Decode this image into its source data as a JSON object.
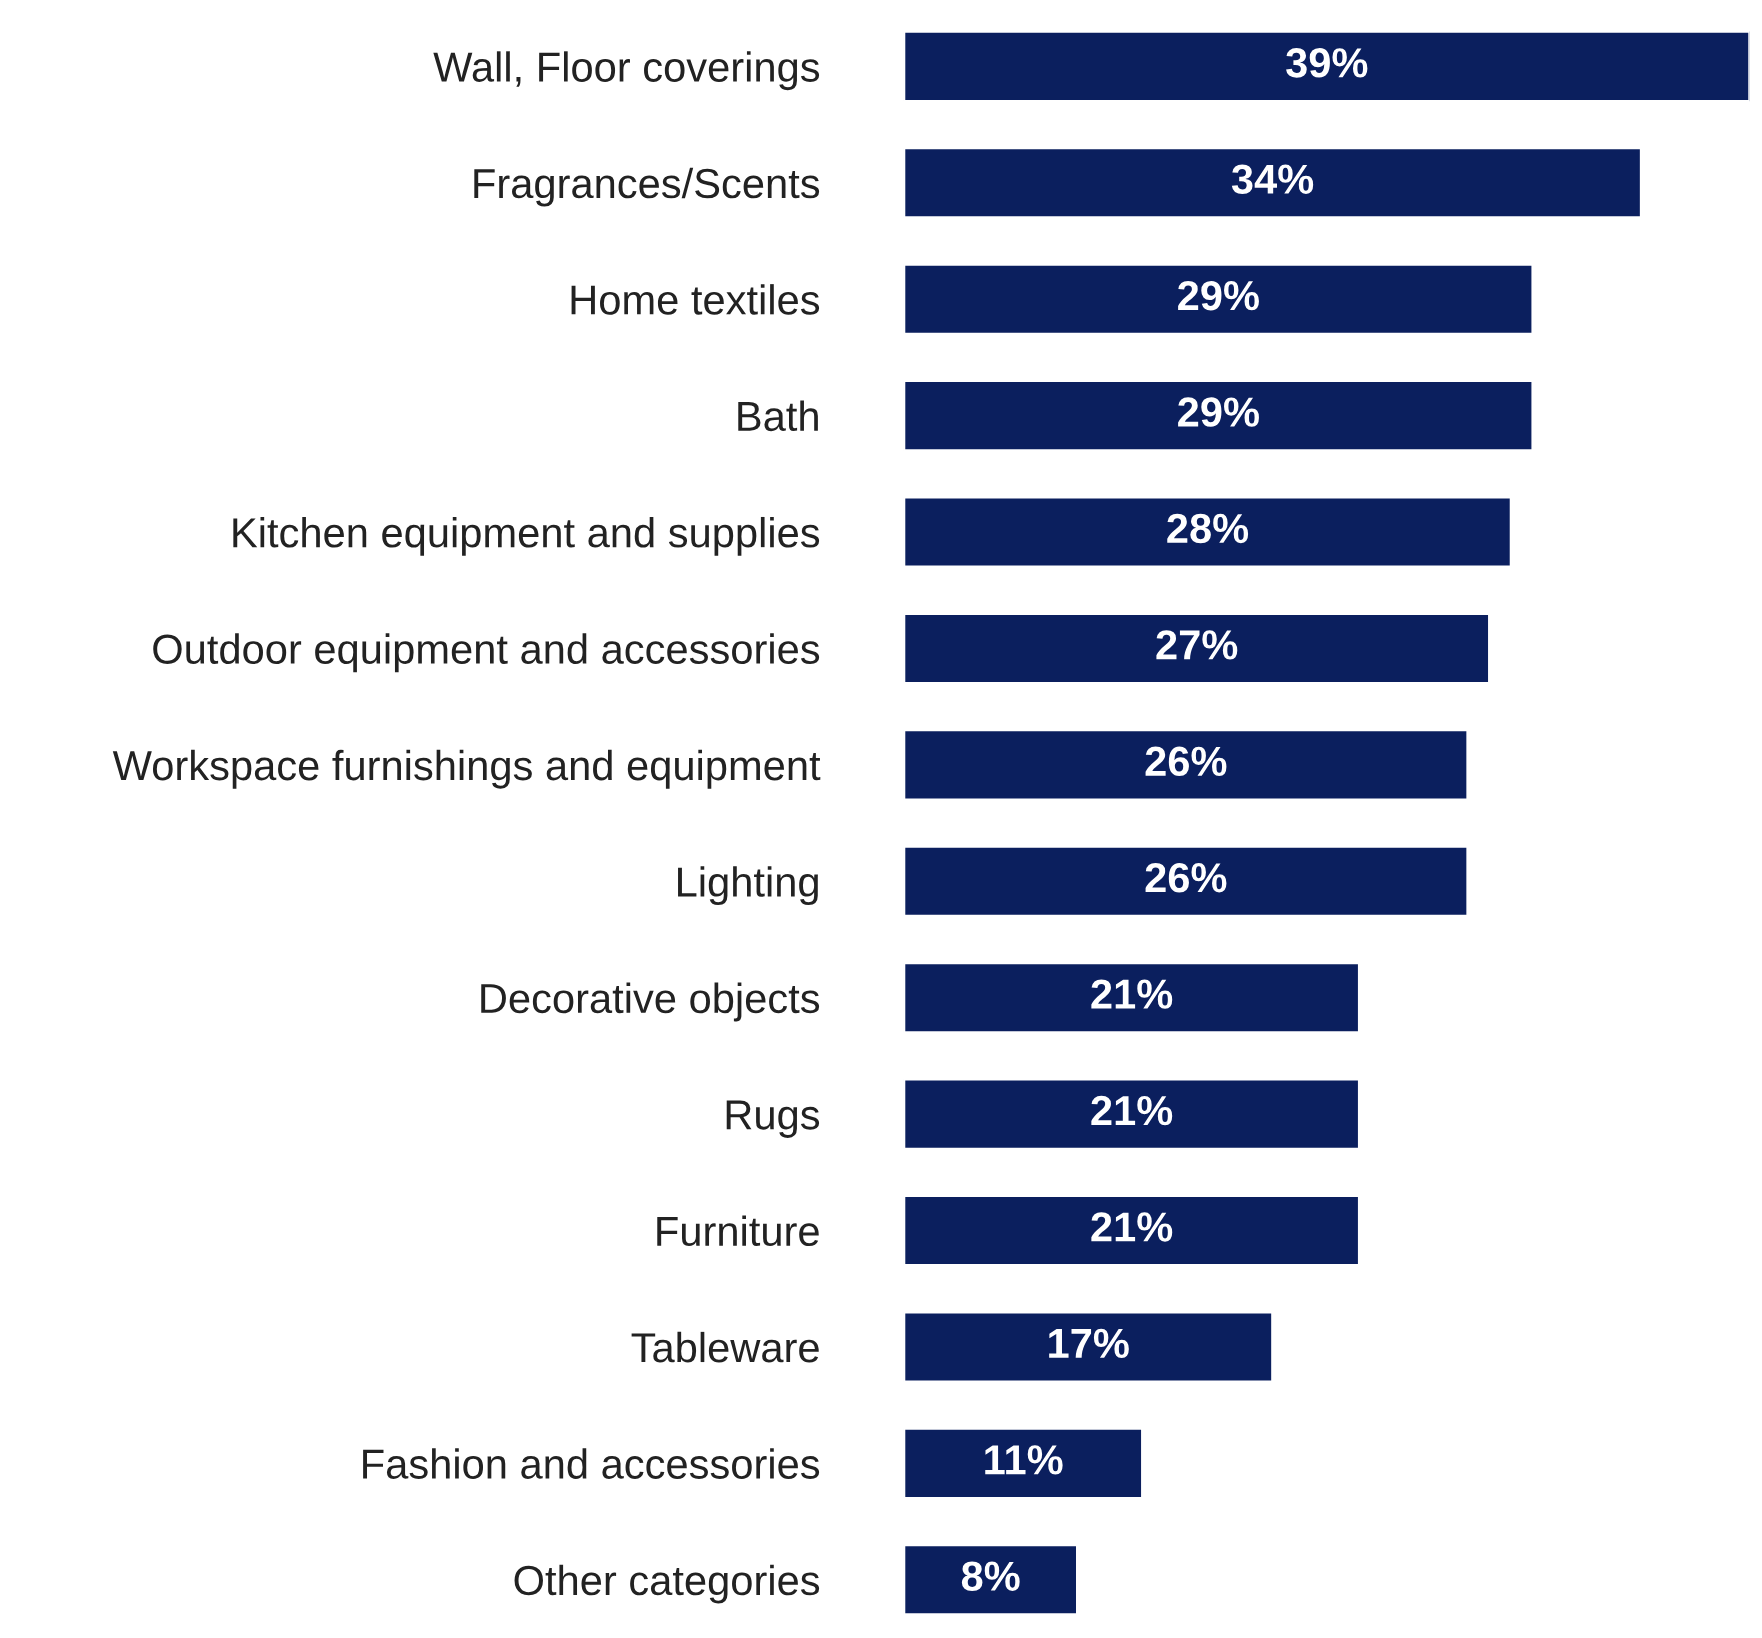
{
  "chart_data": {
    "type": "bar",
    "orientation": "horizontal",
    "categories": [
      "Wall, Floor coverings",
      "Fragrances/Scents",
      "Home textiles",
      "Bath",
      "Kitchen equipment and supplies",
      "Outdoor equipment and accessories",
      "Workspace furnishings and equipment",
      "Lighting",
      "Decorative objects",
      "Rugs",
      "Furniture",
      "Tableware",
      "Fashion and accessories",
      "Other categories"
    ],
    "values": [
      39,
      34,
      29,
      29,
      28,
      27,
      26,
      26,
      21,
      21,
      21,
      17,
      11,
      8
    ],
    "value_labels": [
      "39%",
      "34%",
      "29%",
      "29%",
      "28%",
      "27%",
      "26%",
      "26%",
      "21%",
      "21%",
      "21%",
      "17%",
      "11%",
      "8%"
    ],
    "color": "#0b1f5e",
    "grid": false,
    "legend": false
  }
}
